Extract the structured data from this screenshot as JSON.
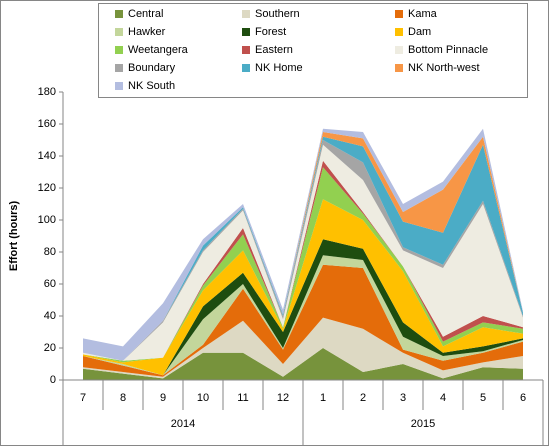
{
  "chart_data": {
    "type": "stacked-area",
    "y_label": "Effort  (hours)",
    "categories": [
      "7",
      "8",
      "9",
      "10",
      "11",
      "12",
      "1",
      "2",
      "3",
      "4",
      "5",
      "6"
    ],
    "x_groups": [
      {
        "label": "2014",
        "span": 6
      },
      {
        "label": "2015",
        "span": 6
      }
    ],
    "ylim": [
      0,
      180
    ],
    "yticks": [
      0,
      20,
      40,
      60,
      80,
      100,
      120,
      140,
      160,
      180
    ],
    "grid": false,
    "legend": "top",
    "series": [
      {
        "name": "Central",
        "color": "#77933c",
        "values": [
          7,
          4,
          1,
          17,
          17,
          2,
          20,
          5,
          10,
          1,
          8,
          7
        ]
      },
      {
        "name": "Southern",
        "color": "#ddd9c3",
        "values": [
          1,
          1,
          1,
          3,
          20,
          8,
          19,
          27,
          7,
          5,
          3,
          8
        ]
      },
      {
        "name": "Kama",
        "color": "#e46c0a",
        "values": [
          7,
          4,
          1,
          2,
          20,
          9,
          33,
          38,
          2,
          6,
          6,
          9
        ]
      },
      {
        "name": "Hawker",
        "color": "#c3d69b",
        "values": [
          0,
          1,
          0,
          16,
          3,
          1,
          6,
          5,
          8,
          3,
          1,
          1
        ]
      },
      {
        "name": "Forest",
        "color": "#1e4d0f",
        "values": [
          0,
          0,
          0,
          8,
          7,
          10,
          10,
          7,
          9,
          2,
          3,
          1
        ]
      },
      {
        "name": "Dam",
        "color": "#ffc000",
        "values": [
          1,
          1,
          11,
          10,
          14,
          2,
          25,
          18,
          32,
          4,
          12,
          3
        ]
      },
      {
        "name": "Weetangera",
        "color": "#92d050",
        "values": [
          0,
          1,
          0,
          3,
          10,
          1,
          20,
          4,
          3,
          3,
          3,
          3
        ]
      },
      {
        "name": "Eastern",
        "color": "#c0504d",
        "values": [
          0,
          0,
          0,
          1,
          4,
          0,
          4,
          1,
          0,
          3,
          4,
          1
        ]
      },
      {
        "name": "Bottom Pinnacle",
        "color": "#eeece1",
        "values": [
          1,
          0,
          22,
          20,
          11,
          5,
          10,
          20,
          10,
          43,
          70,
          6
        ]
      },
      {
        "name": "Boundary",
        "color": "#a5a5a5",
        "values": [
          0,
          0,
          1,
          1,
          1,
          2,
          3,
          11,
          2,
          2,
          2,
          1
        ]
      },
      {
        "name": "NK Home",
        "color": "#4bacc6",
        "values": [
          0,
          0,
          0,
          3,
          1,
          1,
          2,
          10,
          16,
          20,
          35,
          2
        ]
      },
      {
        "name": "NK North-west",
        "color": "#f79646",
        "values": [
          0,
          0,
          0,
          0,
          0,
          0,
          3,
          5,
          6,
          27,
          5,
          0
        ]
      },
      {
        "name": "NK South",
        "color": "#b3bde0",
        "values": [
          9,
          9,
          11,
          4,
          2,
          3,
          2,
          4,
          5,
          5,
          5,
          1
        ]
      }
    ]
  }
}
